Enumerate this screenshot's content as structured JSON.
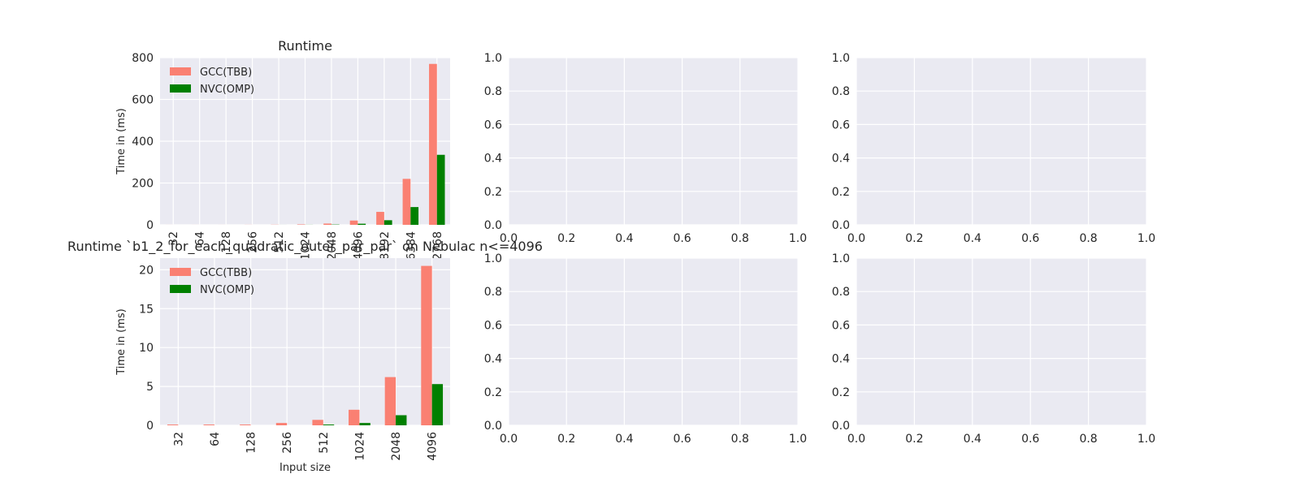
{
  "chart_data": [
    {
      "type": "bar",
      "title": "Runtime",
      "xlabel": "",
      "ylabel": "Time in (ms)",
      "categories": [
        "32",
        "64",
        "128",
        "256",
        "512",
        "1024",
        "2048",
        "4096",
        "8192",
        "16384",
        "32768"
      ],
      "series": [
        {
          "name": "GCC(TBB)",
          "color": "#fa8072",
          "values": [
            0.1,
            0.1,
            0.1,
            0.3,
            0.7,
            2,
            6,
            20.5,
            62,
            220,
            770
          ]
        },
        {
          "name": "NVC(OMP)",
          "color": "#008000",
          "values": [
            0,
            0,
            0,
            0,
            0.1,
            0.3,
            1.3,
            5.3,
            22,
            85,
            335
          ]
        }
      ],
      "yticks": [
        "0",
        "200",
        "400",
        "600",
        "800"
      ],
      "ylim": [
        0,
        800
      ],
      "grid": true,
      "legend": "top-left"
    },
    {
      "type": "empty",
      "xticks": [
        "0.0",
        "0.2",
        "0.4",
        "0.6",
        "0.8",
        "1.0"
      ],
      "yticks": [
        "0.0",
        "0.2",
        "0.4",
        "0.6",
        "0.8",
        "1.0"
      ],
      "xlim": [
        0,
        1
      ],
      "ylim": [
        0,
        1
      ],
      "grid": true
    },
    {
      "type": "empty",
      "xticks": [
        "0.0",
        "0.2",
        "0.4",
        "0.6",
        "0.8",
        "1.0"
      ],
      "yticks": [
        "0.0",
        "0.2",
        "0.4",
        "0.6",
        "0.8",
        "1.0"
      ],
      "xlim": [
        0,
        1
      ],
      "ylim": [
        0,
        1
      ],
      "grid": true
    },
    {
      "type": "bar",
      "title": "Runtime `b1_2_for_each_quadratic_outer_par_par` on Nebulac n<=4096",
      "xlabel": "Input size",
      "ylabel": "Time in (ms)",
      "categories": [
        "32",
        "64",
        "128",
        "256",
        "512",
        "1024",
        "2048",
        "4096"
      ],
      "series": [
        {
          "name": "GCC(TBB)",
          "color": "#fa8072",
          "values": [
            0.1,
            0.1,
            0.1,
            0.3,
            0.7,
            2.0,
            6.2,
            20.5
          ]
        },
        {
          "name": "NVC(OMP)",
          "color": "#008000",
          "values": [
            0.0,
            0.0,
            0.0,
            0.0,
            0.1,
            0.3,
            1.3,
            5.3
          ]
        }
      ],
      "yticks": [
        "0",
        "5",
        "10",
        "15",
        "20"
      ],
      "ylim": [
        0,
        21.5
      ],
      "grid": true,
      "legend": "top-left"
    },
    {
      "type": "empty",
      "xticks": [
        "0.0",
        "0.2",
        "0.4",
        "0.6",
        "0.8",
        "1.0"
      ],
      "yticks": [
        "0.0",
        "0.2",
        "0.4",
        "0.6",
        "0.8",
        "1.0"
      ],
      "xlim": [
        0,
        1
      ],
      "ylim": [
        0,
        1
      ],
      "grid": true
    },
    {
      "type": "empty",
      "xticks": [
        "0.0",
        "0.2",
        "0.4",
        "0.6",
        "0.8",
        "1.0"
      ],
      "yticks": [
        "0.0",
        "0.2",
        "0.4",
        "0.6",
        "0.8",
        "1.0"
      ],
      "xlim": [
        0,
        1
      ],
      "ylim": [
        0,
        1
      ],
      "grid": true
    }
  ]
}
